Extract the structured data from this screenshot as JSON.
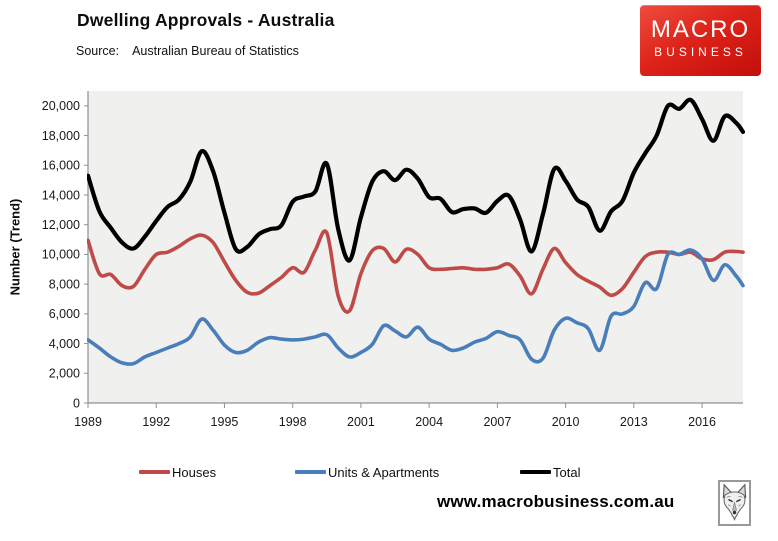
{
  "header": {
    "title": "Dwelling Approvals - Australia",
    "source_label": "Source:",
    "source_value": "Australian Bureau of Statistics"
  },
  "logo": {
    "line1": "MACRO",
    "line2": "BUSINESS",
    "bg_top_color": "#ef4d3f",
    "bg_bottom_color": "#c30e0b",
    "text_color": "#ffffff"
  },
  "chart_data": {
    "type": "line",
    "title": "Dwelling Approvals - Australia",
    "xlabel": "",
    "ylabel": "Number (Trend)",
    "grid": false,
    "legend_position": "bottom",
    "plot_bg": "#f0f0ef",
    "axis_color": "#909090",
    "tick_text_color": "#1a1a1a",
    "xlim": [
      1989,
      2017.8
    ],
    "ylim": [
      0,
      21000
    ],
    "x_ticks": [
      1989,
      1992,
      1995,
      1998,
      2001,
      2004,
      2007,
      2010,
      2013,
      2016
    ],
    "x_tick_labels": [
      "1989",
      "1992",
      "1995",
      "1998",
      "2001",
      "2004",
      "2007",
      "2010",
      "2013",
      "2016"
    ],
    "y_ticks": [
      0,
      2000,
      4000,
      6000,
      8000,
      10000,
      12000,
      14000,
      16000,
      18000,
      20000
    ],
    "y_tick_labels": [
      "0",
      "2,000",
      "4,000",
      "6,000",
      "8,000",
      "10,000",
      "12,000",
      "14,000",
      "16,000",
      "18,000",
      "20,000"
    ],
    "x": [
      1989,
      1989.5,
      1990,
      1990.5,
      1991,
      1991.5,
      1992,
      1992.5,
      1993,
      1993.5,
      1994,
      1994.5,
      1995,
      1995.5,
      1996,
      1996.5,
      1997,
      1997.5,
      1998,
      1998.5,
      1999,
      1999.5,
      2000,
      2000.5,
      2001,
      2001.5,
      2002,
      2002.5,
      2003,
      2003.5,
      2004,
      2004.5,
      2005,
      2005.5,
      2006,
      2006.5,
      2007,
      2007.5,
      2008,
      2008.5,
      2009,
      2009.5,
      2010,
      2010.5,
      2011,
      2011.5,
      2012,
      2012.5,
      2013,
      2013.5,
      2014,
      2014.5,
      2015,
      2015.5,
      2016,
      2016.5,
      2017,
      2017.5,
      2017.8
    ],
    "series": [
      {
        "name": "Houses",
        "color": "#BE4B48",
        "values": [
          10950,
          8700,
          8650,
          7900,
          7850,
          9000,
          10000,
          10150,
          10550,
          11050,
          11300,
          10800,
          9500,
          8250,
          7450,
          7400,
          7900,
          8450,
          9100,
          8800,
          10300,
          11450,
          7200,
          6200,
          8700,
          10250,
          10400,
          9500,
          10350,
          10000,
          9100,
          9000,
          9050,
          9100,
          9000,
          9000,
          9100,
          9350,
          8550,
          7350,
          9000,
          10400,
          9450,
          8650,
          8200,
          7800,
          7250,
          7700,
          8800,
          9850,
          10150,
          10150,
          10000,
          10150,
          9700,
          9650,
          10150,
          10200,
          10150
        ]
      },
      {
        "name": "Units & Apartments",
        "color": "#4A7EBB",
        "values": [
          4250,
          3700,
          3100,
          2700,
          2650,
          3100,
          3400,
          3700,
          4000,
          4450,
          5650,
          4900,
          3900,
          3400,
          3550,
          4100,
          4400,
          4300,
          4250,
          4300,
          4450,
          4600,
          3700,
          3100,
          3400,
          3950,
          5200,
          4850,
          4450,
          5100,
          4300,
          3950,
          3550,
          3700,
          4100,
          4350,
          4800,
          4550,
          4250,
          2950,
          3000,
          4900,
          5700,
          5400,
          5000,
          3550,
          5850,
          6000,
          6500,
          8100,
          7700,
          10000,
          10000,
          10300,
          9700,
          8250,
          9300,
          8550,
          7900
        ]
      },
      {
        "name": "Total",
        "color": "#000000",
        "values": [
          15300,
          12900,
          11800,
          10800,
          10400,
          11200,
          12250,
          13200,
          13700,
          14900,
          16950,
          15600,
          12800,
          10350,
          10500,
          11350,
          11700,
          11950,
          13550,
          13900,
          14250,
          16100,
          11700,
          9600,
          12500,
          14900,
          15600,
          15000,
          15700,
          15100,
          13850,
          13750,
          12850,
          13050,
          13100,
          12800,
          13600,
          13950,
          12350,
          10200,
          12700,
          15750,
          14950,
          13700,
          13200,
          11600,
          12900,
          13600,
          15500,
          16800,
          18000,
          20000,
          19800,
          20400,
          19100,
          17650,
          19300,
          18850,
          18250
        ]
      }
    ]
  },
  "legend": {
    "items": [
      {
        "label": "Houses",
        "color": "#BE4B48"
      },
      {
        "label": "Units & Apartments",
        "color": "#4A7EBB"
      },
      {
        "label": "Total",
        "color": "#000000"
      }
    ]
  },
  "footer": {
    "website": "www.macrobusiness.com.au"
  }
}
